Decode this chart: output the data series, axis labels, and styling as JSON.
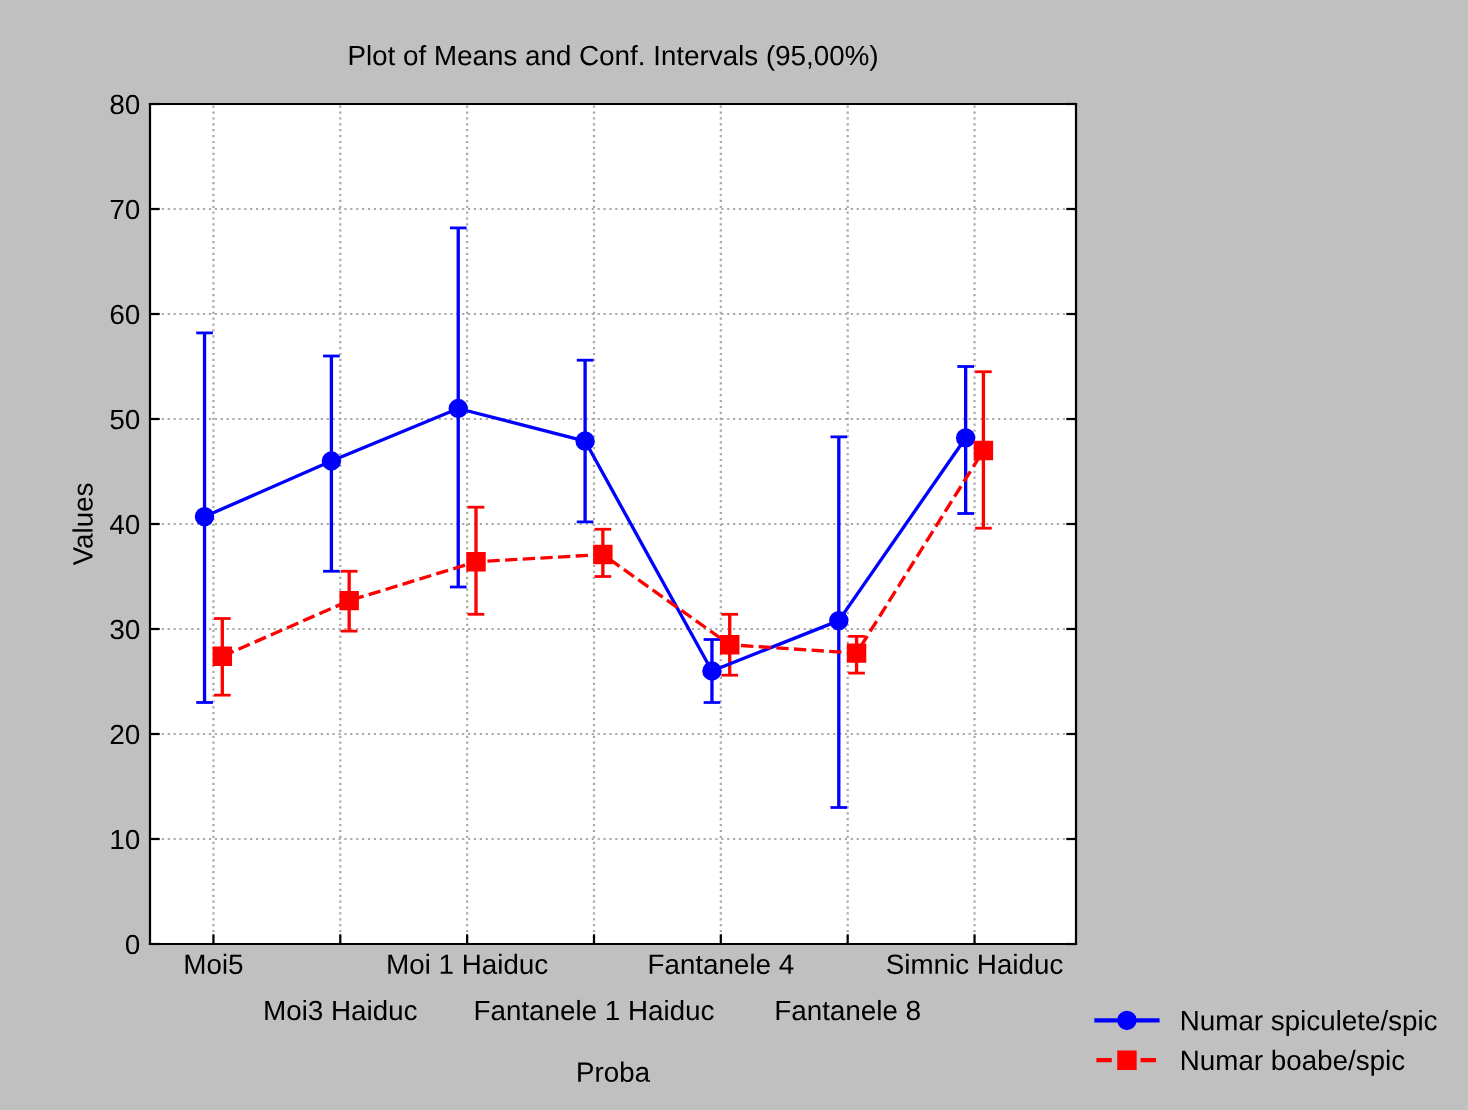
{
  "chart_data": {
    "type": "line",
    "title": "Plot of Means and Conf. Intervals (95,00%)",
    "xlabel": "Proba",
    "ylabel": "Values",
    "categories": [
      "Moi5",
      "Moi3 Haiduc",
      "Moi 1 Haiduc",
      "Fantanele 1 Haiduc",
      "Fantanele 4",
      "Fantanele 8",
      "Simnic Haiduc"
    ],
    "series": [
      {
        "name": "Numar spiculete/spic",
        "color": "#0000ff",
        "marker": "circle",
        "line_style": "solid",
        "values": [
          40.7,
          46,
          51,
          47.9,
          26,
          30.8,
          48.2
        ],
        "errors": [
          [
            23,
            58.2
          ],
          [
            35.5,
            56
          ],
          [
            34,
            68.2
          ],
          [
            40.2,
            55.6
          ],
          [
            23,
            29
          ],
          [
            13,
            48.3
          ],
          [
            41,
            55
          ]
        ]
      },
      {
        "name": "Numar boabe/spic",
        "color": "#ff0000",
        "marker": "square",
        "line_style": "dashed",
        "values": [
          27.4,
          32.7,
          36.4,
          37.1,
          28.5,
          27.7,
          47
        ],
        "errors": [
          [
            23.7,
            31
          ],
          [
            29.8,
            35.5
          ],
          [
            31.4,
            41.6
          ],
          [
            35,
            39.5
          ],
          [
            25.6,
            31.4
          ],
          [
            25.8,
            29.3
          ],
          [
            39.6,
            54.5
          ]
        ]
      }
    ],
    "ylim": [
      0,
      80
    ],
    "yticks": [
      0,
      10,
      20,
      30,
      40,
      50,
      60,
      70,
      80
    ],
    "grid": true,
    "legend": "bottom right"
  }
}
